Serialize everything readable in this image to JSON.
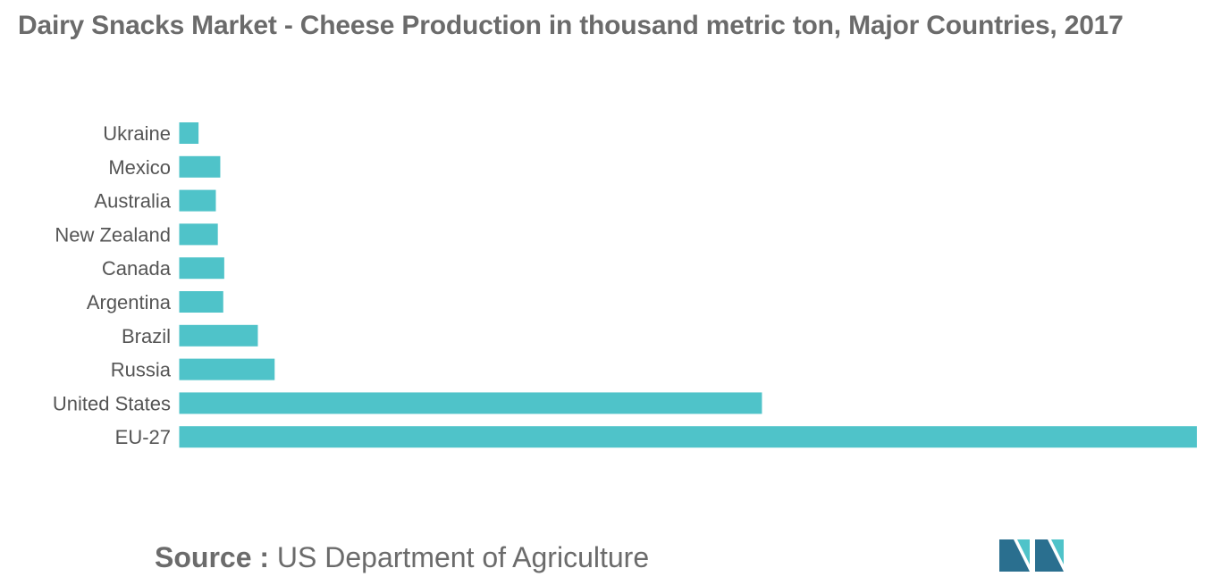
{
  "title": "Dairy Snacks Market - Cheese Production in thousand metric ton, Major Countries, 2017",
  "source": {
    "label": "Source :",
    "text": "US Department of Agriculture"
  },
  "colors": {
    "bar": "#4fc3c9",
    "logo_dark": "#2a6f8f",
    "logo_light": "#4fc3c9"
  },
  "logo_icon": "mordor-intelligence-logo-icon",
  "chart_data": {
    "type": "bar",
    "orientation": "horizontal",
    "title": "Dairy Snacks Market - Cheese Production in thousand metric ton, Major Countries, 2017",
    "categories": [
      "Ukraine",
      "Mexico",
      "Australia",
      "New Zealand",
      "Canada",
      "Argentina",
      "Brazil",
      "Russia",
      "United States",
      "EU-27"
    ],
    "values": [
      200,
      420,
      375,
      395,
      460,
      450,
      800,
      970,
      5900,
      10300
    ],
    "xlabel": "",
    "ylabel": "",
    "xlim": [
      0,
      10300
    ],
    "grid": false,
    "legend": "none"
  }
}
